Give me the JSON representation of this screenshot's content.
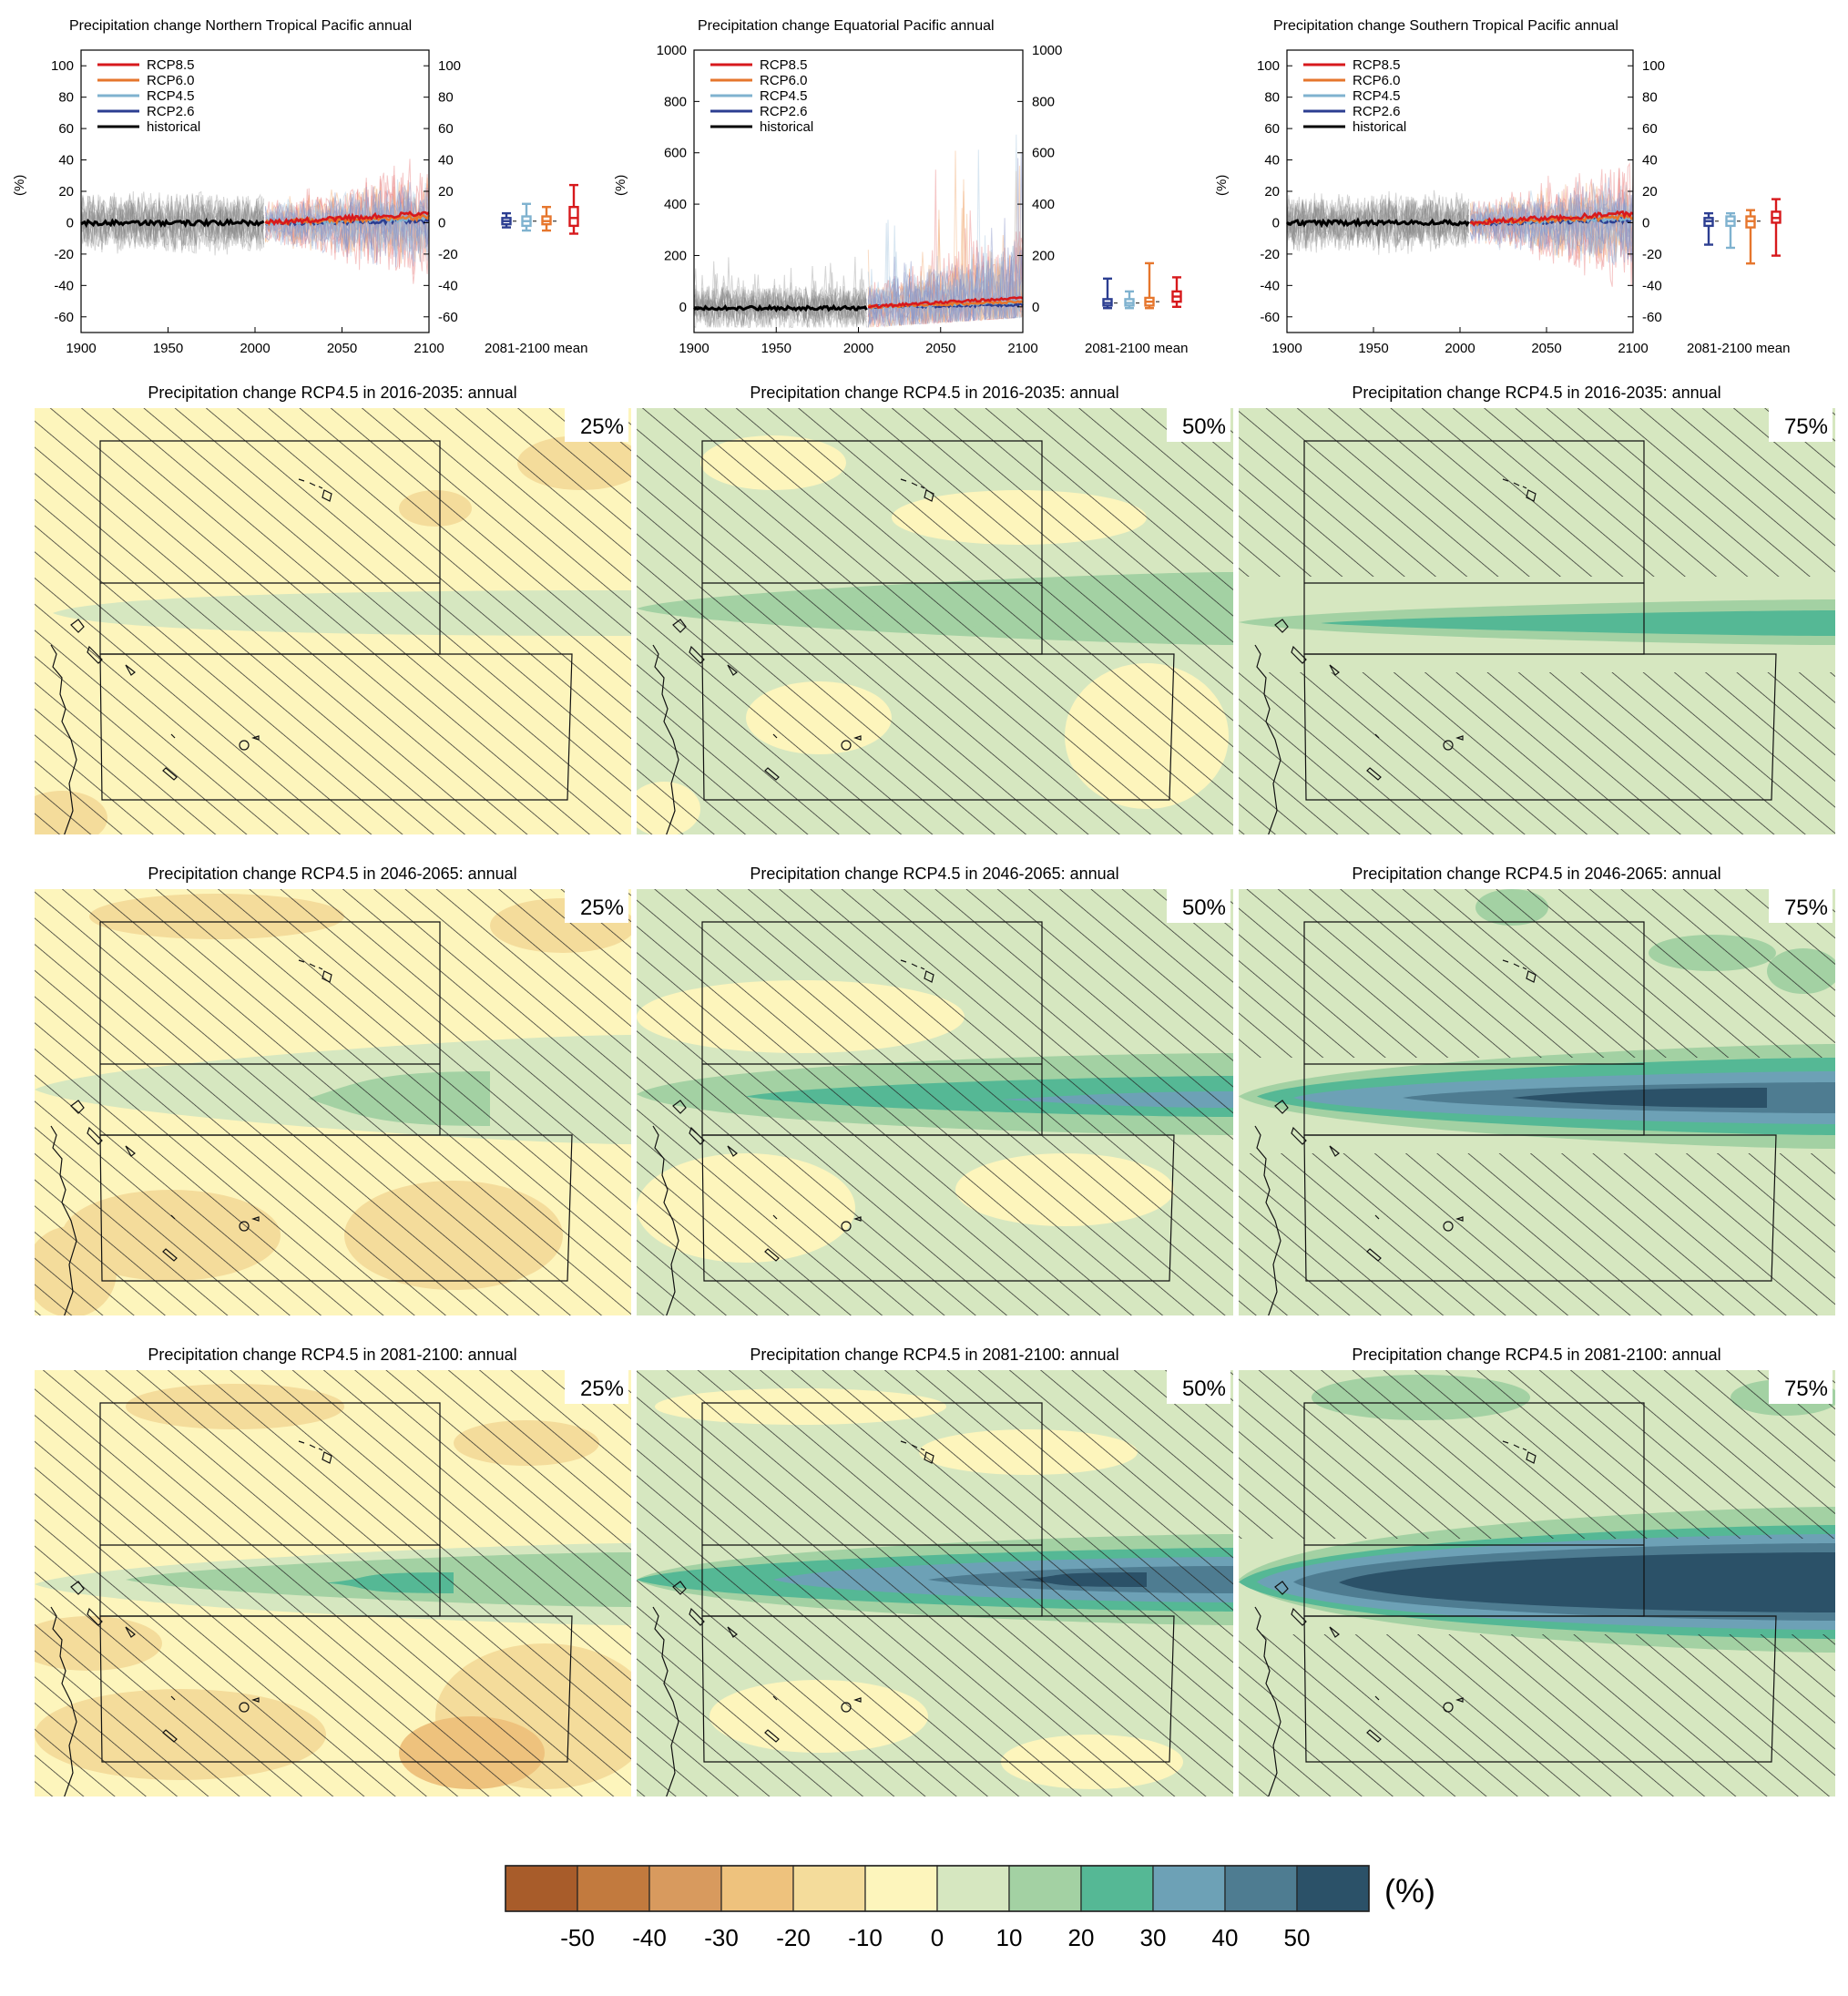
{
  "timeseries_panels": [
    {
      "title": "Precipitation change Northern Tropical Pacific annual",
      "ylabel": "(%)",
      "yticks": [
        -60,
        -40,
        -20,
        0,
        20,
        40,
        60,
        80,
        100
      ],
      "ylim": [
        -70,
        110
      ],
      "box_label": "2081-2100 mean",
      "boxes": [
        {
          "scenario": "RCP2.6",
          "min": -3,
          "q1": -1,
          "median": 1,
          "q3": 3,
          "max": 6
        },
        {
          "scenario": "RCP4.5",
          "min": -5,
          "q1": -2,
          "median": 1,
          "q3": 4,
          "max": 12
        },
        {
          "scenario": "RCP6.0",
          "min": -5,
          "q1": -1,
          "median": 1,
          "q3": 4,
          "max": 10
        },
        {
          "scenario": "RCP8.5",
          "min": -7,
          "q1": -2,
          "median": 3,
          "q3": 10,
          "max": 24
        }
      ]
    },
    {
      "title": "Precipitation change Equatorial Pacific annual",
      "ylabel": "(%)",
      "yticks": [
        0,
        200,
        400,
        600,
        800,
        1000
      ],
      "ylim": [
        -100,
        1000
      ],
      "box_label": "2081-2100 mean",
      "boxes": [
        {
          "scenario": "RCP2.6",
          "min": -5,
          "q1": 5,
          "median": 15,
          "q3": 30,
          "max": 110
        },
        {
          "scenario": "RCP4.5",
          "min": -5,
          "q1": 5,
          "median": 15,
          "q3": 30,
          "max": 60
        },
        {
          "scenario": "RCP6.0",
          "min": -5,
          "q1": 5,
          "median": 20,
          "q3": 35,
          "max": 170
        },
        {
          "scenario": "RCP8.5",
          "min": 0,
          "q1": 20,
          "median": 40,
          "q3": 60,
          "max": 115
        }
      ]
    },
    {
      "title": "Precipitation change Southern Tropical Pacific annual",
      "ylabel": "(%)",
      "yticks": [
        -60,
        -40,
        -20,
        0,
        20,
        40,
        60,
        80,
        100
      ],
      "ylim": [
        -70,
        110
      ],
      "box_label": "2081-2100 mean",
      "boxes": [
        {
          "scenario": "RCP2.6",
          "min": -14,
          "q1": -2,
          "median": 1,
          "q3": 3,
          "max": 6
        },
        {
          "scenario": "RCP4.5",
          "min": -16,
          "q1": -2,
          "median": 1,
          "q3": 4,
          "max": 6
        },
        {
          "scenario": "RCP6.0",
          "min": -26,
          "q1": -3,
          "median": 1,
          "q3": 4,
          "max": 8
        },
        {
          "scenario": "RCP8.5",
          "min": -21,
          "q1": 0,
          "median": 3,
          "q3": 7,
          "max": 15
        }
      ]
    }
  ],
  "shared_timeseries": {
    "xticks": [
      1900,
      1950,
      2000,
      2050,
      2100
    ],
    "xlim": [
      1900,
      2100
    ],
    "legend": [
      {
        "name": "RCP8.5",
        "color": "#d7191c"
      },
      {
        "name": "RCP6.0",
        "color": "#e6762d"
      },
      {
        "name": "RCP4.5",
        "color": "#7fb2cf"
      },
      {
        "name": "RCP2.6",
        "color": "#2c3e91"
      },
      {
        "name": "historical",
        "color": "#000000"
      }
    ]
  },
  "map_rows": [
    {
      "title": "Precipitation change RCP4.5 in 2016-2035: annual",
      "percentiles": [
        "25%",
        "50%",
        "75%"
      ]
    },
    {
      "title": "Precipitation change RCP4.5 in 2046-2065: annual",
      "percentiles": [
        "25%",
        "50%",
        "75%"
      ]
    },
    {
      "title": "Precipitation change RCP4.5 in 2081-2100: annual",
      "percentiles": [
        "25%",
        "50%",
        "75%"
      ]
    }
  ],
  "chart_data": {
    "type": "heatmap",
    "colorbar": {
      "unit": "(%)",
      "tick_labels": [
        "-50",
        "-40",
        "-30",
        "-20",
        "-10",
        "0",
        "10",
        "20",
        "30",
        "40",
        "50"
      ],
      "colors": [
        "#a85c2a",
        "#c27a3e",
        "#d89a5e",
        "#eec27d",
        "#f4dc9b",
        "#fdf5bc",
        "#d6e7c0",
        "#a3d1a3",
        "#55b895",
        "#6da1b6",
        "#4e7c91",
        "#2b5168"
      ]
    }
  }
}
